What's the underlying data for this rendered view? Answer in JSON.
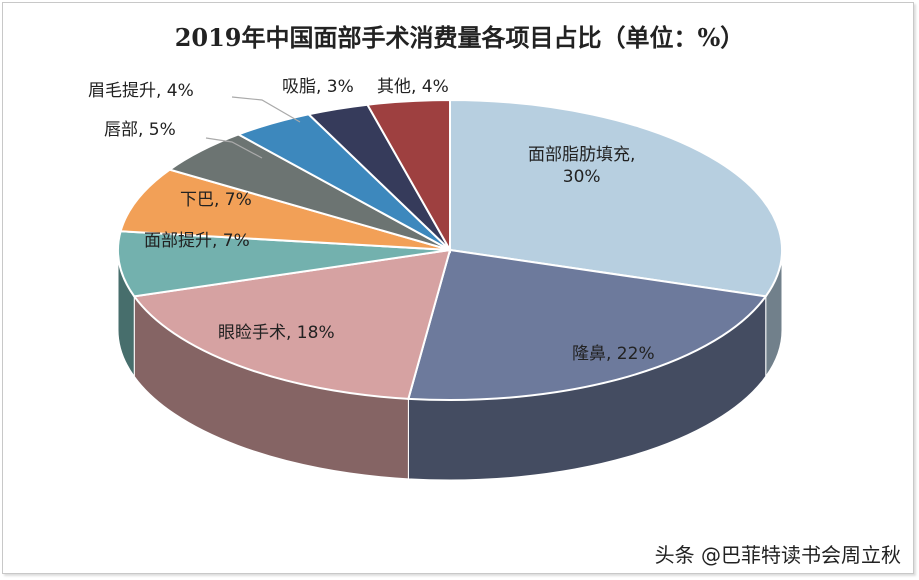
{
  "chart_data": {
    "type": "pie",
    "style": "3d",
    "title": "2019年中国面部手术消费量各项目占比（单位：%）",
    "slices": [
      {
        "label": "面部脂肪填充",
        "value": 30,
        "text": "面部脂肪填充,",
        "text2": "30%",
        "color": "#b7cfe0"
      },
      {
        "label": "隆鼻",
        "value": 22,
        "text": "隆鼻, 22%",
        "color": "#6d7a9c"
      },
      {
        "label": "眼睑手术",
        "value": 18,
        "text": "眼睑手术, 18%",
        "color": "#d6a2a2"
      },
      {
        "label": "面部提升",
        "value": 7,
        "text": "面部提升, 7%",
        "color": "#73b1ae"
      },
      {
        "label": "下巴",
        "value": 7,
        "text": "下巴, 7%",
        "color": "#f2a057"
      },
      {
        "label": "唇部",
        "value": 5,
        "text": "唇部, 5%",
        "color": "#6c7472"
      },
      {
        "label": "眉毛提升",
        "value": 4,
        "text": "眉毛提升, 4%",
        "color": "#3d88bd"
      },
      {
        "label": "吸脂",
        "value": 3,
        "text": "吸脂, 3%",
        "color": "#363b5b"
      },
      {
        "label": "其他",
        "value": 4,
        "text": "其他, 4%",
        "color": "#9e4040"
      }
    ]
  },
  "watermark": "头条 @巴菲特读书会周立秋"
}
